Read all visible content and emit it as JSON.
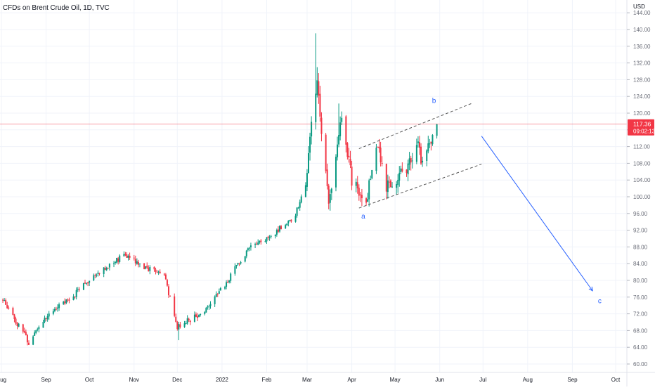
{
  "chart_data": {
    "type": "candlestick",
    "title": "CFDs on Brent Crude Oil, 1D, TVC",
    "currency": "USD",
    "y_ticks": [
      "60.00",
      "64.00",
      "68.00",
      "72.00",
      "76.00",
      "80.00",
      "84.00",
      "88.00",
      "92.00",
      "96.00",
      "100.00",
      "104.00",
      "108.00",
      "112.00",
      "116.00",
      "120.00",
      "124.00",
      "128.00",
      "132.00",
      "136.00",
      "140.00",
      "144.00"
    ],
    "ylim": [
      58.5,
      145
    ],
    "x_ticks": [
      {
        "label": "Aug",
        "date": "2021-08-01"
      },
      {
        "label": "Sep",
        "date": "2021-09-01"
      },
      {
        "label": "Oct",
        "date": "2021-10-01"
      },
      {
        "label": "Nov",
        "date": "2021-11-01"
      },
      {
        "label": "Dec",
        "date": "2021-12-01"
      },
      {
        "label": "2022",
        "date": "2022-01-01"
      },
      {
        "label": "Feb",
        "date": "2022-02-01"
      },
      {
        "label": "Mar",
        "date": "2022-03-01"
      },
      {
        "label": "Apr",
        "date": "2022-04-01"
      },
      {
        "label": "May",
        "date": "2022-05-01"
      },
      {
        "label": "Jun",
        "date": "2022-06-01"
      },
      {
        "label": "Jul",
        "date": "2022-07-01"
      },
      {
        "label": "Aug",
        "date": "2022-08-01"
      },
      {
        "label": "Sep",
        "date": "2022-09-01"
      },
      {
        "label": "Oct",
        "date": "2022-10-01"
      }
    ],
    "last_price": {
      "value": 117.36,
      "label": "117.36",
      "countdown": "09:02:13",
      "color": "#f23645"
    },
    "colors": {
      "up": "#089981",
      "down": "#f23645",
      "annotation": "#2962ff",
      "channel": "#555555"
    },
    "anchors": [
      {
        "date": "2021-08-02",
        "price": 75.5
      },
      {
        "date": "2021-08-20",
        "price": 65.2
      },
      {
        "date": "2021-09-03",
        "price": 72.6
      },
      {
        "date": "2021-09-17",
        "price": 75.3
      },
      {
        "date": "2021-10-05",
        "price": 81.3
      },
      {
        "date": "2021-10-25",
        "price": 86.0
      },
      {
        "date": "2021-11-10",
        "price": 83.0
      },
      {
        "date": "2021-11-22",
        "price": 81.2
      },
      {
        "date": "2021-12-01",
        "price": 68.9
      },
      {
        "date": "2021-12-20",
        "price": 72.5
      },
      {
        "date": "2022-01-01",
        "price": 78.0
      },
      {
        "date": "2022-01-20",
        "price": 88.0
      },
      {
        "date": "2022-02-01",
        "price": 90.0
      },
      {
        "date": "2022-02-20",
        "price": 95.0
      },
      {
        "date": "2022-02-28",
        "price": 103.0
      },
      {
        "date": "2022-03-04",
        "price": 118.0
      },
      {
        "date": "2022-03-08",
        "price": 128.0
      },
      {
        "date": "2022-03-16",
        "price": 98.0
      },
      {
        "date": "2022-03-24",
        "price": 119.0
      },
      {
        "date": "2022-04-01",
        "price": 104.4
      },
      {
        "date": "2022-04-11",
        "price": 98.5
      },
      {
        "date": "2022-04-18",
        "price": 113.0
      },
      {
        "date": "2022-04-25",
        "price": 102.5
      },
      {
        "date": "2022-05-09",
        "price": 106.0
      },
      {
        "date": "2022-05-17",
        "price": 112.0
      },
      {
        "date": "2022-05-19",
        "price": 108.5
      },
      {
        "date": "2022-05-30",
        "price": 117.36
      }
    ],
    "channel": {
      "upper": [
        {
          "date": "2022-04-06",
          "price": 111.5
        },
        {
          "date": "2022-06-23",
          "price": 122.3
        }
      ],
      "lower": [
        {
          "date": "2022-04-06",
          "price": 97.3
        },
        {
          "date": "2022-06-30",
          "price": 107.8
        }
      ]
    },
    "projection_arrow": {
      "from": {
        "date": "2022-06-30",
        "price": 114.5
      },
      "to": {
        "date": "2022-09-15",
        "price": 77.5
      }
    },
    "wave_labels": [
      {
        "text": "a",
        "date": "2022-04-09",
        "price": 94.8
      },
      {
        "text": "b",
        "date": "2022-05-28",
        "price": 122.4
      },
      {
        "text": "c",
        "date": "2022-09-20",
        "price": 74.5
      }
    ]
  }
}
